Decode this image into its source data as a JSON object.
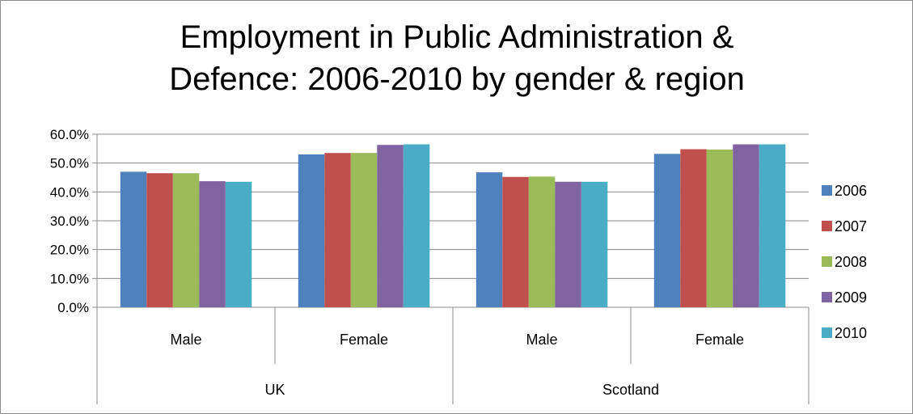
{
  "chart_data": {
    "type": "bar",
    "title_lines": [
      "Employment in Public Administration &",
      "Defence: 2006-2010 by gender & region"
    ],
    "xlabel": "",
    "ylabel": "",
    "ylim": [
      0,
      60
    ],
    "ytick_values": [
      0,
      10,
      20,
      30,
      40,
      50,
      60
    ],
    "ytick_labels": [
      "0.0%",
      "10.0%",
      "20.0%",
      "30.0%",
      "40.0%",
      "50.0%",
      "60.0%"
    ],
    "grid": true,
    "legend_position": "right",
    "groups": [
      "UK",
      "Scotland"
    ],
    "categories": [
      "Male",
      "Female",
      "Male",
      "Female"
    ],
    "series": [
      {
        "name": "2006",
        "color": "#4F81BD",
        "values": [
          47.0,
          53.0,
          46.8,
          53.2
        ]
      },
      {
        "name": "2007",
        "color": "#C0504D",
        "values": [
          46.5,
          53.5,
          45.2,
          54.8
        ]
      },
      {
        "name": "2008",
        "color": "#9BBB59",
        "values": [
          46.5,
          53.5,
          45.3,
          54.7
        ]
      },
      {
        "name": "2009",
        "color": "#8064A2",
        "values": [
          43.7,
          56.3,
          43.5,
          56.5
        ]
      },
      {
        "name": "2010",
        "color": "#4BACC6",
        "values": [
          43.5,
          56.5,
          43.5,
          56.5
        ]
      }
    ]
  }
}
